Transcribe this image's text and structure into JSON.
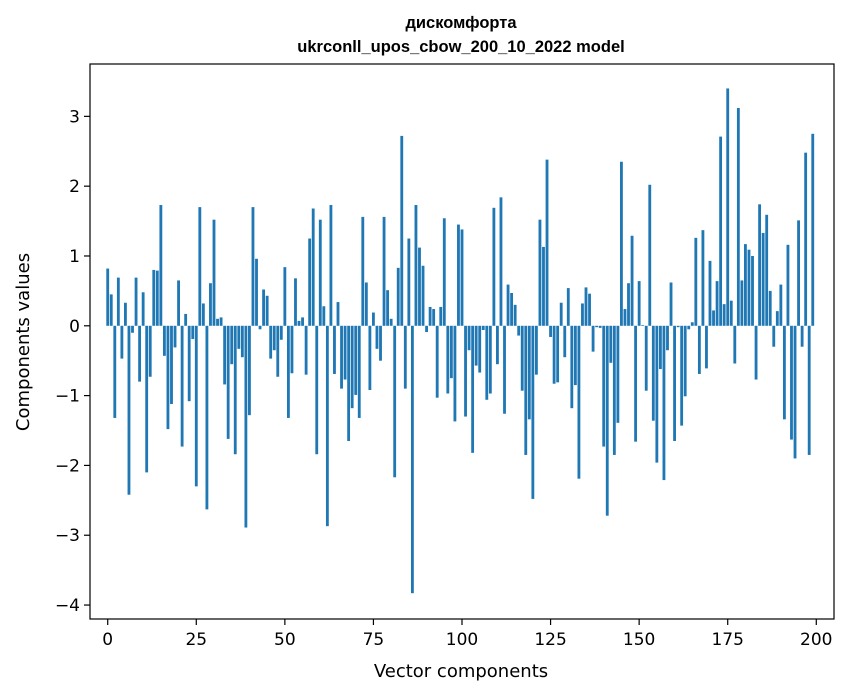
{
  "chart_data": {
    "type": "bar",
    "title": "дискомфорта",
    "subtitle": "ukrconll_upos_cbow_200_10_2022 model",
    "xlabel": "Vector components",
    "ylabel": "Components values",
    "xlim": [
      -5,
      205
    ],
    "ylim": [
      -4.2,
      3.75
    ],
    "xticks": [
      0,
      25,
      50,
      75,
      100,
      125,
      150,
      175,
      200
    ],
    "xtick_labels": [
      "0",
      "25",
      "50",
      "75",
      "100",
      "125",
      "150",
      "175",
      "200"
    ],
    "yticks": [
      -4,
      -3,
      -2,
      -1,
      0,
      1,
      2,
      3
    ],
    "ytick_labels": [
      "−4",
      "−3",
      "−2",
      "−1",
      "0",
      "1",
      "2",
      "3"
    ],
    "bar_color": "#1f77b4",
    "series": [
      {
        "name": "дискомфорта",
        "values": [
          0.82,
          0.45,
          -1.32,
          0.69,
          -0.47,
          0.33,
          -2.42,
          -0.1,
          0.69,
          -0.8,
          0.48,
          -2.1,
          -0.73,
          0.8,
          0.79,
          1.73,
          -0.43,
          -1.48,
          -1.12,
          -0.31,
          0.65,
          -1.73,
          0.17,
          -1.08,
          -0.19,
          -2.3,
          1.7,
          0.32,
          -2.63,
          0.61,
          1.52,
          0.1,
          0.12,
          -0.84,
          -1.62,
          -0.55,
          -1.84,
          -0.33,
          -0.45,
          -2.89,
          -1.28,
          1.7,
          0.96,
          -0.05,
          0.52,
          0.43,
          -0.47,
          -0.35,
          -0.73,
          -0.2,
          0.84,
          -1.32,
          -0.68,
          0.68,
          0.07,
          0.12,
          -0.7,
          1.25,
          1.68,
          -1.84,
          1.52,
          0.28,
          -2.87,
          1.73,
          -0.69,
          0.34,
          -0.9,
          -0.77,
          -1.65,
          -1.18,
          -0.99,
          -1.32,
          1.56,
          0.62,
          -0.92,
          0.19,
          -0.33,
          -0.5,
          1.56,
          0.51,
          0.1,
          -2.17,
          0.83,
          2.72,
          -0.9,
          1.25,
          -3.83,
          1.73,
          1.12,
          0.86,
          -0.09,
          0.27,
          0.24,
          -1.03,
          0.27,
          1.54,
          -0.97,
          -0.75,
          -1.37,
          1.45,
          1.38,
          -1.3,
          -0.35,
          -1.82,
          -0.57,
          -0.67,
          -0.06,
          -1.06,
          -0.97,
          1.69,
          -0.55,
          1.84,
          -1.26,
          0.59,
          0.47,
          0.3,
          -0.14,
          -0.93,
          -1.85,
          -1.34,
          -2.48,
          -0.7,
          1.52,
          1.13,
          2.38,
          -0.16,
          -0.83,
          -0.81,
          0.33,
          -0.45,
          0.54,
          -1.18,
          -0.85,
          -2.19,
          0.32,
          0.55,
          0.46,
          -0.37,
          -0.02,
          -0.03,
          -1.73,
          -2.72,
          -0.53,
          -1.85,
          -1.39,
          2.35,
          0.24,
          0.61,
          1.29,
          -1.66,
          0.64,
          0.01,
          -0.93,
          2.02,
          -1.36,
          -1.96,
          -0.62,
          -2.21,
          -0.35,
          0.62,
          -1.65,
          -0.02,
          -1.43,
          -1.01,
          -0.05,
          0.05,
          1.26,
          -0.69,
          1.37,
          -0.61,
          0.93,
          0.22,
          0.64,
          2.71,
          0.31,
          3.4,
          0.36,
          -0.54,
          3.12,
          0.65,
          1.17,
          1.09,
          1.0,
          -0.77,
          1.74,
          1.33,
          1.59,
          0.5,
          -0.3,
          0.21,
          0.59,
          -1.34,
          1.16,
          -1.63,
          -1.9,
          1.51,
          -0.3,
          2.48,
          -1.85,
          2.75
        ]
      }
    ]
  }
}
